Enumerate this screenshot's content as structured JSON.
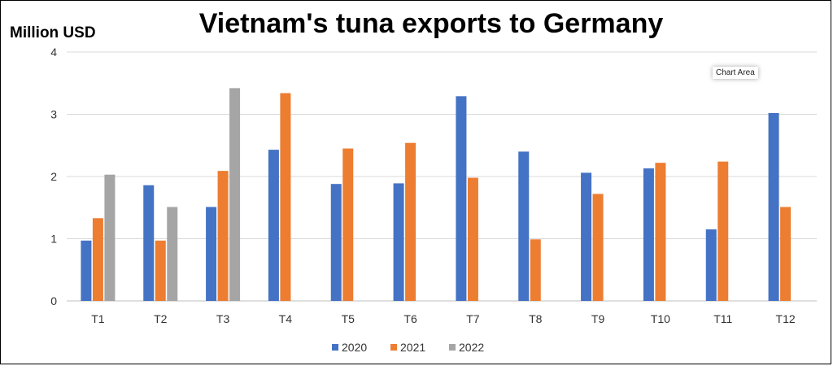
{
  "chart_data": {
    "type": "bar",
    "title": "Vietnam's tuna exports to Germany",
    "ylabel": "Million USD",
    "xlabel": "",
    "ylim": [
      0,
      4
    ],
    "yticks": [
      0,
      1,
      2,
      3,
      4
    ],
    "grid": true,
    "legend_position": "bottom",
    "categories": [
      "T1",
      "T2",
      "T3",
      "T4",
      "T5",
      "T6",
      "T7",
      "T8",
      "T9",
      "T10",
      "T11",
      "T12"
    ],
    "series": [
      {
        "name": "2020",
        "color": "#4472C4",
        "values": [
          0.97,
          1.86,
          1.51,
          2.43,
          1.88,
          1.89,
          3.29,
          2.4,
          2.06,
          2.13,
          1.15,
          3.02
        ]
      },
      {
        "name": "2021",
        "color": "#ED7D31",
        "values": [
          1.33,
          0.97,
          2.09,
          3.34,
          2.45,
          2.54,
          1.98,
          0.99,
          1.72,
          2.22,
          2.24,
          1.51
        ]
      },
      {
        "name": "2022",
        "color": "#A5A5A5",
        "values": [
          2.03,
          1.51,
          3.42,
          null,
          null,
          null,
          null,
          null,
          null,
          null,
          null,
          null
        ]
      }
    ]
  },
  "overlay": {
    "tooltip": "Chart Area"
  }
}
